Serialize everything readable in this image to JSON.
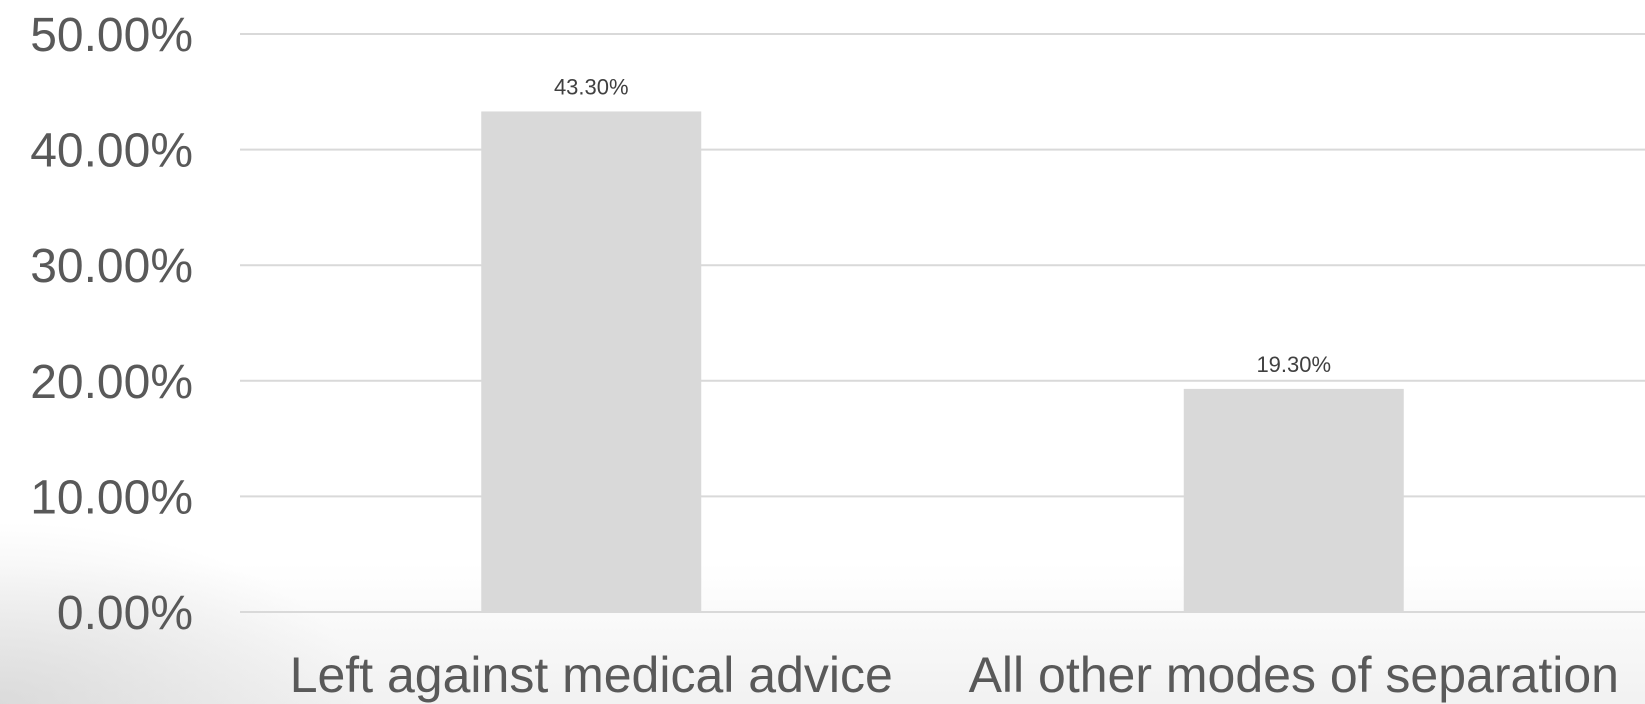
{
  "chart_data": {
    "type": "bar",
    "categories": [
      "Left against medical advice",
      "All other modes of separation"
    ],
    "values": [
      43.3,
      19.3
    ],
    "data_labels": [
      "43.30%",
      "19.30%"
    ],
    "ylim": [
      0,
      50
    ],
    "yticks": [
      0,
      10,
      20,
      30,
      40,
      50
    ],
    "ytick_labels": [
      "0.00%",
      "10.00%",
      "20.00%",
      "30.00%",
      "40.00%",
      "50.00%"
    ],
    "title": "",
    "xlabel": "",
    "ylabel": "",
    "grid": true,
    "legend": "none",
    "bar_color": "#d9d9d9"
  }
}
